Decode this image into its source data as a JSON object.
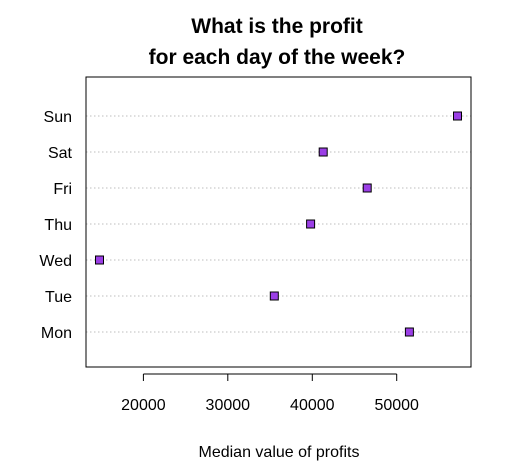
{
  "chart_data": {
    "type": "scatter",
    "title": "What is the profit\nfor each day of the week?",
    "title_lines": [
      "What is the profit",
      "for each day of the week?"
    ],
    "xlabel": "Median value of profits",
    "ylabel": "",
    "categories": [
      "Mon",
      "Tue",
      "Wed",
      "Thu",
      "Fri",
      "Sat",
      "Sun"
    ],
    "values": [
      51500,
      35500,
      14800,
      39800,
      46500,
      41300,
      57200
    ],
    "x_ticks": [
      20000,
      30000,
      40000,
      50000
    ],
    "x_tick_labels": [
      "20000",
      "30000",
      "40000",
      "50000"
    ],
    "xlim": [
      13200,
      58800
    ],
    "grid": "horizontal-dotted",
    "legend": "none",
    "marker": "square",
    "marker_color": "#9b3fe6",
    "marker_edge_color": "#000000",
    "grid_color": "#bebebe"
  }
}
